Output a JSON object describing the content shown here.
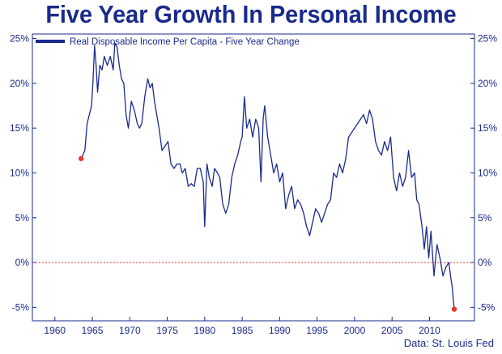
{
  "chart_data": {
    "type": "line",
    "title": "Five Year Growth In Personal Income",
    "source": "Data: St. Louis Fed",
    "xlim": [
      1957,
      2016
    ],
    "ylim": [
      -6.5,
      25.5
    ],
    "x_ticks": [
      1960,
      1965,
      1970,
      1975,
      1980,
      1985,
      1990,
      1995,
      2000,
      2005,
      2010
    ],
    "y_ticks": [
      {
        "v": 25,
        "label": "25%"
      },
      {
        "v": 20,
        "label": "20%"
      },
      {
        "v": 15,
        "label": "15%"
      },
      {
        "v": 10,
        "label": "10%"
      },
      {
        "v": 5,
        "label": "5%"
      },
      {
        "v": 0,
        "label": "0%"
      },
      {
        "v": -5,
        "label": "-5%"
      }
    ],
    "grid": false,
    "zero_line": {
      "value": 0,
      "style": "dotted",
      "color": "#e8352f"
    },
    "legend": {
      "position": "top-left"
    },
    "series": [
      {
        "name": "Real Disposable Income Per Capita - Five Year Change",
        "color": "#1a2a8c",
        "x": [
          1963.5,
          1964.0,
          1964.3,
          1964.6,
          1964.9,
          1965.1,
          1965.3,
          1965.5,
          1965.7,
          1966.0,
          1966.3,
          1966.6,
          1967.0,
          1967.4,
          1967.8,
          1968.0,
          1968.3,
          1968.6,
          1968.9,
          1969.2,
          1969.5,
          1969.8,
          1970.2,
          1970.6,
          1971.0,
          1971.3,
          1971.6,
          1972.0,
          1972.4,
          1972.7,
          1973.0,
          1973.3,
          1973.6,
          1973.9,
          1974.3,
          1974.7,
          1975.1,
          1975.5,
          1975.9,
          1976.3,
          1976.7,
          1977.0,
          1977.4,
          1977.8,
          1978.2,
          1978.6,
          1979.0,
          1979.4,
          1979.8,
          1980.0,
          1980.3,
          1980.6,
          1981.0,
          1981.3,
          1981.7,
          1982.0,
          1982.4,
          1982.8,
          1983.2,
          1983.6,
          1984.0,
          1984.4,
          1984.8,
          1985.0,
          1985.3,
          1985.6,
          1986.0,
          1986.4,
          1986.8,
          1987.2,
          1987.5,
          1987.8,
          1988.0,
          1988.4,
          1988.8,
          1989.2,
          1989.6,
          1990.0,
          1990.4,
          1990.8,
          1991.2,
          1991.6,
          1992.0,
          1992.4,
          1992.8,
          1993.2,
          1993.6,
          1994.0,
          1994.4,
          1994.8,
          1995.2,
          1995.6,
          1996.0,
          1996.4,
          1996.8,
          1997.2,
          1997.6,
          1998.0,
          1998.4,
          1998.8,
          1999.2,
          1999.6,
          2000.0,
          2000.4,
          2000.8,
          2001.2,
          2001.6,
          2002.0,
          2002.4,
          2002.8,
          2003.2,
          2003.6,
          2004.0,
          2004.4,
          2004.8,
          2005.2,
          2005.6,
          2006.0,
          2006.4,
          2006.8,
          2007.2,
          2007.6,
          2008.0,
          2008.3,
          2008.6,
          2009.0,
          2009.3,
          2009.6,
          2009.9,
          2010.2,
          2010.6,
          2011.0,
          2011.4,
          2011.8,
          2012.2,
          2012.6,
          2012.8,
          2013.0,
          2013.3
        ],
        "y": [
          11.6,
          12.5,
          15.5,
          16.5,
          17.5,
          20.5,
          24.2,
          22.0,
          19.0,
          22.0,
          21.5,
          23.0,
          22.0,
          23.0,
          21.5,
          24.5,
          24.0,
          22.0,
          20.5,
          20.0,
          16.5,
          15.0,
          18.0,
          17.0,
          15.5,
          15.0,
          15.5,
          18.5,
          20.5,
          19.5,
          20.0,
          18.0,
          16.5,
          15.0,
          12.5,
          13.0,
          13.5,
          11.0,
          10.5,
          11.0,
          11.0,
          10.0,
          10.5,
          8.5,
          8.8,
          8.5,
          10.5,
          10.5,
          9.0,
          4.0,
          11.0,
          9.5,
          8.5,
          10.5,
          10.0,
          9.5,
          6.5,
          5.5,
          6.5,
          9.5,
          11.0,
          12.0,
          13.5,
          14.0,
          18.5,
          15.0,
          16.0,
          14.0,
          16.0,
          15.0,
          9.0,
          16.0,
          17.5,
          14.0,
          12.0,
          10.0,
          11.0,
          9.0,
          10.0,
          6.0,
          7.5,
          8.5,
          6.0,
          7.0,
          6.5,
          5.5,
          4.0,
          3.0,
          4.5,
          6.0,
          5.5,
          4.5,
          5.5,
          6.5,
          7.0,
          10.0,
          9.5,
          11.0,
          10.0,
          11.5,
          14.0,
          14.5,
          15.0,
          15.5,
          16.0,
          16.5,
          15.5,
          17.0,
          16.0,
          13.5,
          12.5,
          12.0,
          13.5,
          12.5,
          14.0,
          9.5,
          8.0,
          10.0,
          8.5,
          9.5,
          12.5,
          9.5,
          10.0,
          7.0,
          6.5,
          4.0,
          1.5,
          4.0,
          0.5,
          3.5,
          -1.5,
          2.0,
          0.5,
          -1.5,
          -0.5,
          0.0,
          -1.5,
          -2.5,
          -5.2
        ],
        "endpoint_markers": [
          {
            "x": 1963.5,
            "y": 11.6,
            "color": "#e8352f"
          },
          {
            "x": 2013.3,
            "y": -5.2,
            "color": "#e8352f"
          }
        ]
      }
    ]
  }
}
